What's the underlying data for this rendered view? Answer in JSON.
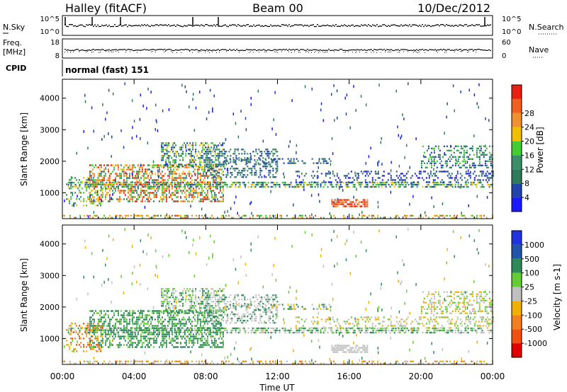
{
  "header": {
    "title": "Halley (fitACF)",
    "beam": "Beam 00",
    "date": "10/Dec/2012"
  },
  "colors": {
    "power_scale": [
      "#1a1aff",
      "#2244aa",
      "#2f7a5a",
      "#3a8f6a",
      "#44cc33",
      "#f0c000",
      "#f09030",
      "#f06020",
      "#e82010"
    ],
    "velocity_scale": [
      "#e00000",
      "#f05010",
      "#f08020",
      "#f0b000",
      "#c0c0c0",
      "#66cc33",
      "#2f8a5a",
      "#2255aa",
      "#2233dd"
    ]
  },
  "chart_data": [
    {
      "type": "line",
      "name": "nsky-nsearch-panel",
      "left_label": "N.Sky",
      "right_label": "N.Search",
      "left_ticks": [
        "10^5",
        "10^0"
      ],
      "right_ticks": [
        "10^5",
        "10^0"
      ]
    },
    {
      "type": "line",
      "name": "freq-nave-panel",
      "left_label_lines": [
        "Freq.",
        "[MHz]"
      ],
      "right_label": "Nave",
      "left_ticks": [
        18,
        8
      ],
      "right_ticks": [
        60,
        0
      ]
    },
    {
      "type": "text",
      "name": "cpid-panel",
      "left_label": "CPID",
      "program": "normal (fast) 151"
    },
    {
      "type": "heatmap",
      "name": "power-panel",
      "ylabel": "Slant Range [km]",
      "yticks": [
        1000,
        2000,
        3000,
        4000
      ],
      "ylim": [
        180,
        4600
      ],
      "colorbar_label": "Power [dB]",
      "colorbar_ticks": [
        4,
        8,
        12,
        16,
        20,
        24,
        28
      ],
      "colorbar_range": [
        0,
        32
      ]
    },
    {
      "type": "heatmap",
      "name": "velocity-panel",
      "ylabel": "Slant Range [km]",
      "yticks": [
        1000,
        2000,
        3000,
        4000
      ],
      "ylim": [
        180,
        4600
      ],
      "colorbar_label": "Velocity [m s-1]",
      "colorbar_tick_labels": [
        "-1000",
        "-500",
        "-100",
        "-25",
        "25",
        "100",
        "500",
        "1000"
      ]
    }
  ],
  "x_axis": {
    "label": "Time UT",
    "tick_labels": [
      "00:00",
      "04:00",
      "08:00",
      "12:00",
      "16:00",
      "20:00",
      "00:00"
    ],
    "range_hours": [
      0,
      24
    ]
  }
}
